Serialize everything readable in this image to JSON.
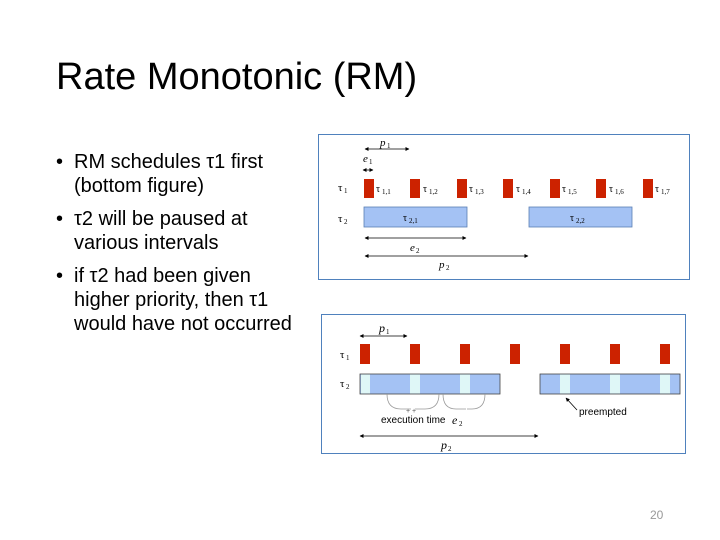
{
  "slide": {
    "title": "Rate Monotonic (RM)",
    "bullets": [
      "RM schedules τ1 first (bottom figure)",
      " τ2 will be paused at various intervals",
      "if τ2 had been given higher priority, then τ1 would have not occurred"
    ],
    "page_number": "20"
  },
  "top_diagram": {
    "tau1": "τ",
    "tau1_sub": "1",
    "tau2": "τ",
    "tau2_sub": "2",
    "p1": "p",
    "p1_sub": "1",
    "e1": "e",
    "e1_sub": "1",
    "e2": "e",
    "e2_sub": "2",
    "p2": "p",
    "p2_sub": "2",
    "jobs1": [
      "1,1",
      "1,2",
      "1,3",
      "1,4",
      "1,5",
      "1,6",
      "1,7"
    ],
    "jobs2": [
      "2,1",
      "2,2"
    ]
  },
  "bottom_diagram": {
    "tau1": "τ",
    "tau1_sub": "1",
    "tau2": "τ",
    "tau2_sub": "2",
    "p1": "p",
    "p1_sub": "1",
    "p2": "p",
    "p2_sub": "2",
    "exec_label": "execution time ",
    "e2": "e",
    "e2_sub": "2",
    "preempted": "preempted"
  },
  "colors": {
    "tau1_block": "#cc2200",
    "tau2_block": "#a4c2f4",
    "preempt_gap": "#dff7f7",
    "frame": "#4f81bd"
  }
}
